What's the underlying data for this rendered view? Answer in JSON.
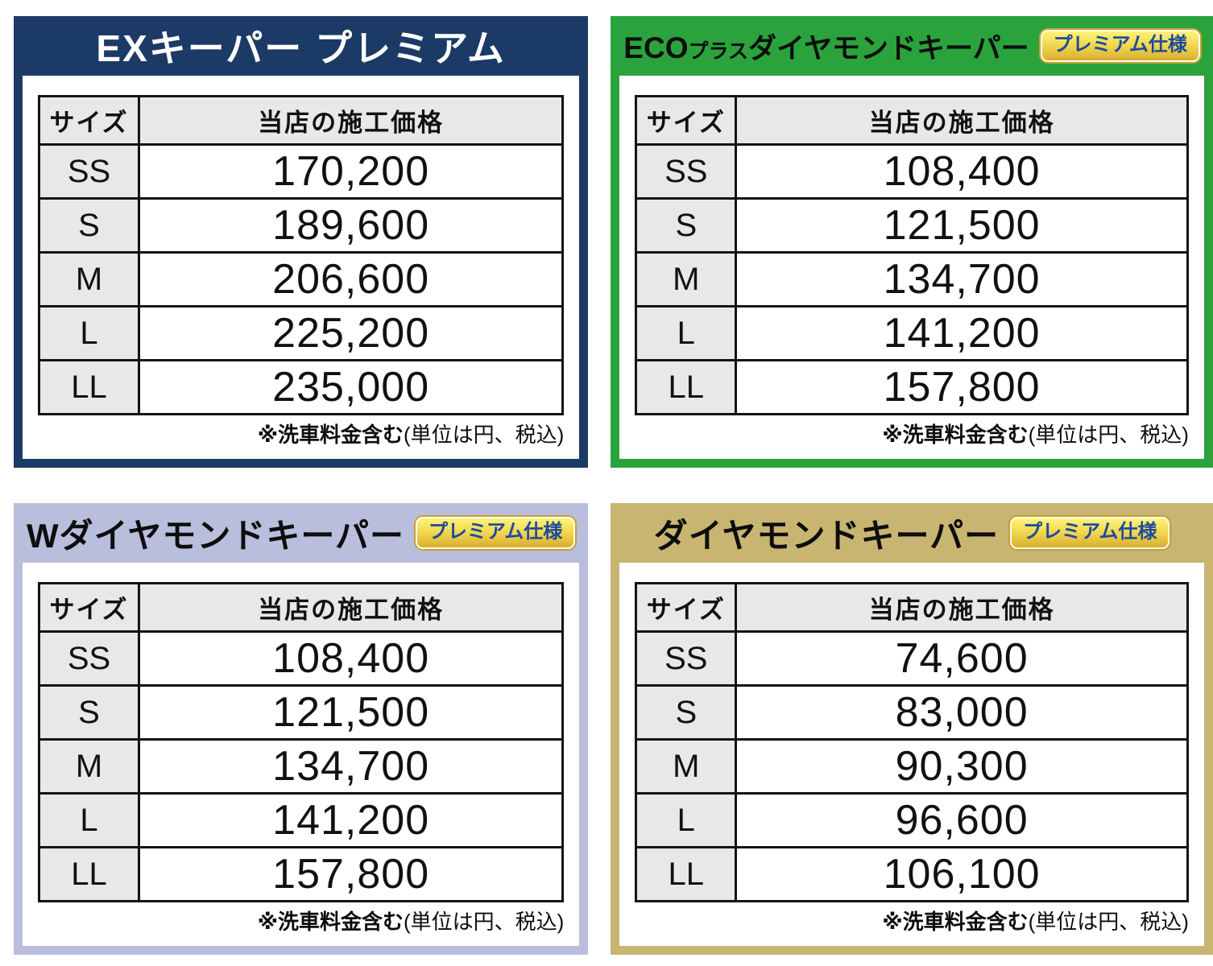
{
  "page": {
    "background": "#ffffff",
    "table_border_color": "#141414",
    "cell_gray": "#e8e8e8"
  },
  "badge": {
    "label": "プレミアム仕様",
    "text_color": "#1c4a9e",
    "bg_top": "#fdf37d",
    "bg_bottom": "#d9ad33"
  },
  "table_headers": {
    "size": "サイズ",
    "price": "当店の施工価格"
  },
  "sizes": [
    "SS",
    "S",
    "M",
    "L",
    "LL"
  ],
  "note": {
    "bold": "※洗車料金含む",
    "normal": "(単位は円、税込)"
  },
  "panels": [
    {
      "id": "ex-keeper-premium",
      "title": "EXキーパー プレミアム",
      "accent": "#1c3a66",
      "title_color": "#ffffff",
      "has_badge": false,
      "prices": [
        "170,200",
        "189,600",
        "206,600",
        "225,200",
        "235,000"
      ]
    },
    {
      "id": "eco-plus-diamond-keeper",
      "title_prefix": "ECO",
      "title_sub": "プラス",
      "title": "ダイヤモンドキーパー",
      "accent": "#2aa33c",
      "title_color": "#0d0d0d",
      "has_badge": true,
      "prices": [
        "108,400",
        "121,500",
        "134,700",
        "141,200",
        "157,800"
      ]
    },
    {
      "id": "w-diamond-keeper",
      "title": "Wダイヤモンドキーパー",
      "accent": "#b9bedd",
      "title_color": "#0d0d0d",
      "has_badge": true,
      "prices": [
        "108,400",
        "121,500",
        "134,700",
        "141,200",
        "157,800"
      ]
    },
    {
      "id": "diamond-keeper",
      "title": "ダイヤモンドキーパー",
      "accent": "#c9b572",
      "title_color": "#0d0d0d",
      "has_badge": true,
      "prices": [
        "74,600",
        "83,000",
        "90,300",
        "96,600",
        "106,100"
      ]
    }
  ]
}
